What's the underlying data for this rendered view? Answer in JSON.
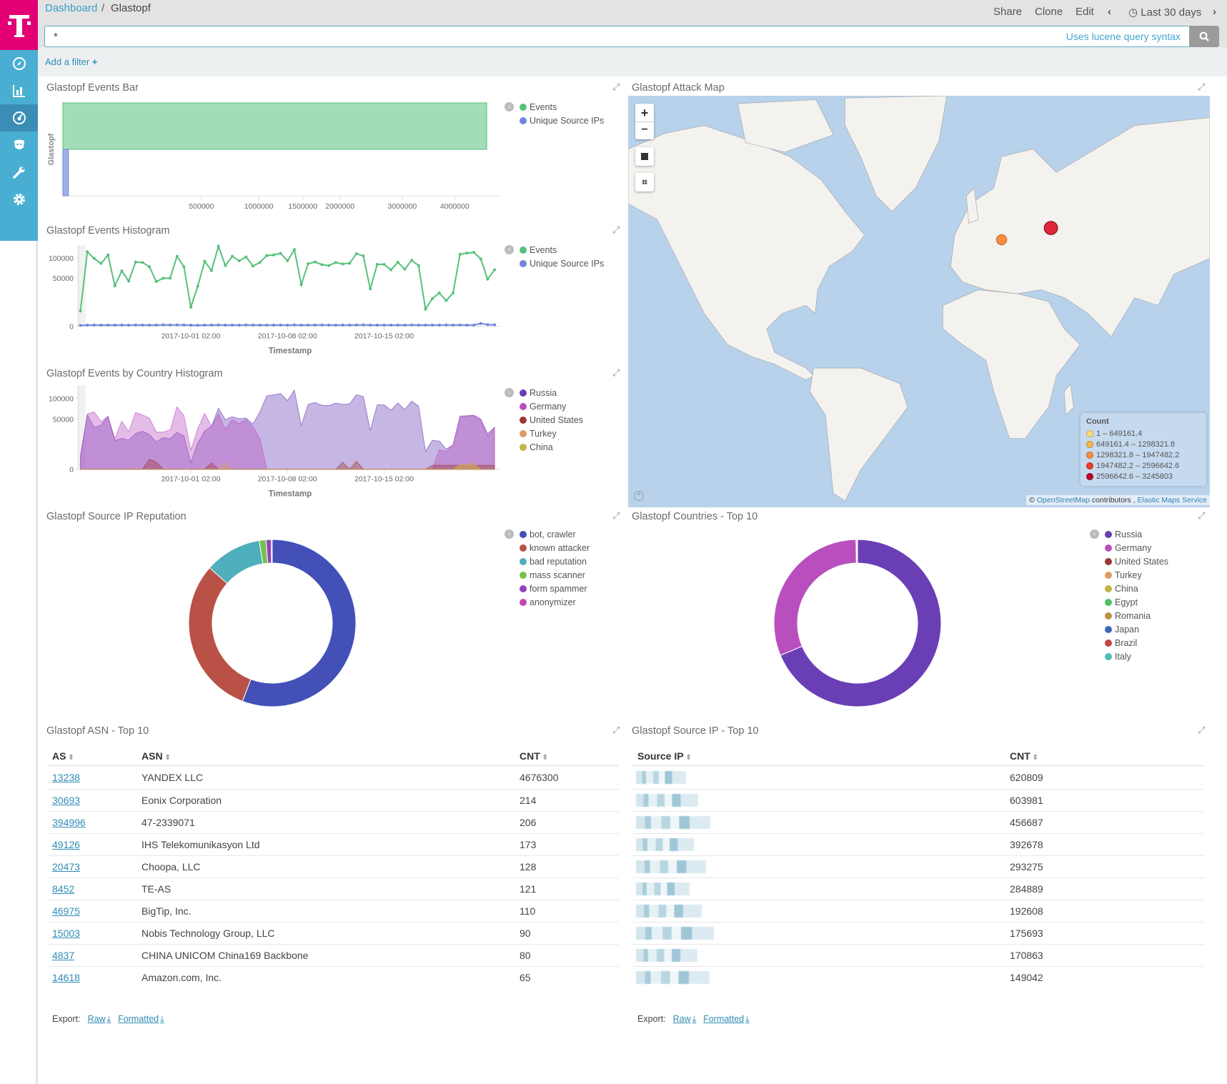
{
  "breadcrumb": {
    "root": "Dashboard",
    "current": "Glastopf"
  },
  "toolbar": {
    "share": "Share",
    "clone": "Clone",
    "edit": "Edit",
    "time_range": "Last 30 days"
  },
  "search": {
    "value": "*",
    "hint": "Uses lucene query syntax"
  },
  "filter": {
    "add_label": "Add a filter"
  },
  "sidebar": {
    "items": [
      {
        "icon": "compass-icon"
      },
      {
        "icon": "bar-chart-icon"
      },
      {
        "icon": "dashboard-icon",
        "active": true
      },
      {
        "icon": "timelion-icon"
      },
      {
        "icon": "wrench-icon"
      },
      {
        "icon": "gear-icon"
      }
    ]
  },
  "colors": {
    "brand": "#e20074",
    "sidebar": "#4aaed3",
    "accent": "#2f8cb6"
  },
  "panels": {
    "events_bar": {
      "title": "Glastopf Events Bar"
    },
    "attack_map": {
      "title": "Glastopf Attack Map",
      "legend_title": "Count",
      "legend": [
        {
          "label": "1 – 649161.4",
          "color": "#fed976"
        },
        {
          "label": "649161.4 – 1298321.8",
          "color": "#feb24c"
        },
        {
          "label": "1298321.8 – 1947482.2",
          "color": "#fd8d3c"
        },
        {
          "label": "1947482.2 – 2596642.6",
          "color": "#f03b20"
        },
        {
          "label": "2596642.6 – 3245803",
          "color": "#bd0026"
        }
      ],
      "markers": [
        {
          "location": "Germany",
          "color": "#fd8d3c"
        },
        {
          "location": "Russia",
          "color": "#e0283a"
        }
      ],
      "attribution": {
        "prefix": "©",
        "osm": "OpenStreetMap",
        "contributors": "contributors ,",
        "ems": "Elastic Maps Service"
      },
      "controls": {
        "zoom_in": "+",
        "zoom_out": "−"
      }
    },
    "events_histogram": {
      "title": "Glastopf Events Histogram"
    },
    "country_histogram": {
      "title": "Glastopf Events by Country Histogram"
    },
    "reputation": {
      "title": "Glastopf Source IP Reputation"
    },
    "countries": {
      "title": "Glastopf Countries - Top 10"
    },
    "asn": {
      "title": "Glastopf ASN - Top 10",
      "columns": [
        "AS",
        "ASN",
        "CNT"
      ],
      "rows": [
        [
          "13238",
          "YANDEX LLC",
          "4676300"
        ],
        [
          "30693",
          "Eonix Corporation",
          "214"
        ],
        [
          "394996",
          "47-2339071",
          "206"
        ],
        [
          "49126",
          "IHS Telekomunikasyon Ltd",
          "173"
        ],
        [
          "20473",
          "Choopa, LLC",
          "128"
        ],
        [
          "8452",
          "TE-AS",
          "121"
        ],
        [
          "46975",
          "BigTip, Inc.",
          "110"
        ],
        [
          "15003",
          "Nobis Technology Group, LLC",
          "90"
        ],
        [
          "4837",
          "CHINA UNICOM China169 Backbone",
          "80"
        ],
        [
          "14618",
          "Amazon.com, Inc.",
          "65"
        ]
      ],
      "export": {
        "label": "Export:",
        "raw": "Raw",
        "formatted": "Formatted"
      }
    },
    "source_ip": {
      "title": "Glastopf Source IP - Top 10",
      "columns": [
        "Source IP",
        "CNT"
      ],
      "rows": [
        [
          "620809"
        ],
        [
          "603981"
        ],
        [
          "456687"
        ],
        [
          "392678"
        ],
        [
          "293275"
        ],
        [
          "284889"
        ],
        [
          "192608"
        ],
        [
          "175693"
        ],
        [
          "170863"
        ],
        [
          "149042"
        ]
      ],
      "export": {
        "label": "Export:",
        "raw": "Raw",
        "formatted": "Formatted"
      }
    }
  },
  "chart_data": [
    {
      "type": "bar",
      "orientation": "horizontal",
      "categories": [
        "Glastopf"
      ],
      "ylabel": "Glastopf",
      "xscale": "sqrt",
      "xlim": [
        0,
        5000000
      ],
      "xticks": [
        "500000",
        "1000000",
        "1500000",
        "2000000",
        "3000000",
        "4000000"
      ],
      "series": [
        {
          "name": "Events",
          "color": "#57c17b",
          "values": [
            4680000
          ]
        },
        {
          "name": "Unique Source IPs",
          "color": "#6f87d8",
          "values": [
            800
          ]
        }
      ]
    },
    {
      "type": "line",
      "xlabel": "Timestamp",
      "yscale": "sqrt",
      "ylim": [
        0,
        140000
      ],
      "yticks": [
        "0",
        "50000",
        "100000"
      ],
      "xticks": [
        "2017-10-01 02:00",
        "2017-10-08 02:00",
        "2017-10-15 02:00"
      ],
      "x": [
        "2017-09-23 02:00",
        "2017-09-23 14:00",
        "2017-09-24 02:00",
        "2017-09-24 14:00",
        "2017-09-25 02:00",
        "2017-09-25 14:00",
        "2017-09-26 02:00",
        "2017-09-26 14:00",
        "2017-09-27 02:00",
        "2017-09-27 14:00",
        "2017-09-28 02:00",
        "2017-09-28 14:00",
        "2017-09-29 02:00",
        "2017-09-29 14:00",
        "2017-09-30 02:00",
        "2017-09-30 14:00",
        "2017-10-01 02:00",
        "2017-10-01 14:00",
        "2017-10-02 02:00",
        "2017-10-02 14:00",
        "2017-10-03 02:00",
        "2017-10-03 14:00",
        "2017-10-04 02:00",
        "2017-10-04 14:00",
        "2017-10-05 02:00",
        "2017-10-05 14:00",
        "2017-10-06 02:00",
        "2017-10-06 14:00",
        "2017-10-07 02:00",
        "2017-10-07 14:00",
        "2017-10-08 02:00",
        "2017-10-08 14:00",
        "2017-10-09 02:00",
        "2017-10-09 14:00",
        "2017-10-10 02:00",
        "2017-10-10 14:00",
        "2017-10-11 02:00",
        "2017-10-11 14:00",
        "2017-10-12 02:00",
        "2017-10-12 14:00",
        "2017-10-13 02:00",
        "2017-10-13 14:00",
        "2017-10-14 02:00",
        "2017-10-14 14:00",
        "2017-10-15 02:00",
        "2017-10-15 14:00",
        "2017-10-16 02:00",
        "2017-10-16 14:00",
        "2017-10-17 02:00",
        "2017-10-17 14:00",
        "2017-10-18 02:00",
        "2017-10-18 14:00",
        "2017-10-19 02:00",
        "2017-10-19 14:00",
        "2017-10-20 02:00",
        "2017-10-20 14:00",
        "2017-10-21 02:00",
        "2017-10-21 14:00",
        "2017-10-22 02:00",
        "2017-10-22 14:00",
        "2017-10-23 02:00"
      ],
      "series": [
        {
          "name": "Events",
          "color": "#57c17b",
          "values": [
            5000,
            119000,
            98600,
            84600,
            109000,
            35000,
            66000,
            43800,
            88500,
            87200,
            75900,
            42900,
            49500,
            49500,
            105000,
            75900,
            7800,
            34300,
            90500,
            66500,
            137000,
            79000,
            105000,
            91700,
            103000,
            77700,
            87200,
            107000,
            109000,
            114000,
            91700,
            126000,
            37200,
            84000,
            88500,
            81400,
            79000,
            87200,
            83300,
            85300,
            113000,
            106000,
            29900,
            82000,
            82000,
            68200,
            87800,
            69900,
            93200,
            79000,
            6300,
            16600,
            23800,
            14200,
            23800,
            111000,
            115000,
            117000,
            97200,
            47600,
            68200
          ]
        },
        {
          "name": "Unique Source IPs",
          "color": "#6f87d8",
          "values": [
            20,
            30,
            35,
            30,
            35,
            30,
            35,
            30,
            40,
            35,
            30,
            35,
            50,
            40,
            45,
            40,
            30,
            25,
            30,
            35,
            40,
            30,
            35,
            30,
            40,
            35,
            30,
            35,
            35,
            35,
            30,
            45,
            30,
            35,
            35,
            40,
            35,
            30,
            35,
            35,
            40,
            45,
            35,
            30,
            35,
            30,
            35,
            30,
            40,
            35,
            30,
            35,
            35,
            40,
            35,
            40,
            30,
            35,
            175,
            60,
            50
          ]
        }
      ]
    },
    {
      "type": "area",
      "xlabel": "Timestamp",
      "yscale": "sqrt",
      "ylim": [
        0,
        140000
      ],
      "yticks": [
        "0",
        "50000",
        "100000"
      ],
      "xticks": [
        "2017-10-01 02:00",
        "2017-10-08 02:00",
        "2017-10-15 02:00"
      ],
      "series": [
        {
          "name": "Russia",
          "color": "#6a3fb5",
          "values": [
            3400,
            58500,
            34500,
            38500,
            55500,
            16200,
            19000,
            16800,
            25300,
            28800,
            23700,
            14900,
            19600,
            18500,
            27000,
            22000,
            900,
            13600,
            28800,
            36500,
            74000,
            48700,
            54500,
            50600,
            52000,
            40600,
            64900,
            106800,
            109600,
            113800,
            93400,
            124000,
            38000,
            83300,
            88300,
            80900,
            80300,
            87000,
            83300,
            84500,
            110000,
            104700,
            29500,
            82100,
            82100,
            69300,
            87000,
            70400,
            92100,
            79100,
            6300,
            16800,
            15700,
            8100,
            11700,
            56000,
            57000,
            58000,
            50000,
            25000,
            35000
          ]
        },
        {
          "name": "Germany",
          "color": "#b94fbf",
          "values": [
            3400,
            60600,
            64900,
            45000,
            55500,
            18500,
            46000,
            28000,
            63800,
            58500,
            51600,
            27400,
            27400,
            30700,
            77300,
            57000,
            7200,
            32500,
            62000,
            36500,
            60600,
            31400,
            48700,
            41500,
            48700,
            35700,
            19000,
            0,
            0,
            0,
            0,
            0,
            0,
            0,
            0,
            0,
            0,
            0,
            0,
            0,
            0,
            0,
            0,
            0,
            0,
            0,
            0,
            0,
            0,
            0,
            0,
            0,
            7600,
            6300,
            11700,
            53500,
            56000,
            57000,
            48700,
            22000,
            33300
          ]
        },
        {
          "name": "United States",
          "color": "#9c3636",
          "values": [
            0,
            0,
            0,
            0,
            0,
            0,
            0,
            0,
            0,
            0,
            2000,
            1000,
            0,
            0,
            0,
            0,
            0,
            0,
            0,
            800,
            0,
            0,
            0,
            0,
            0,
            0,
            0,
            0,
            0,
            0,
            0,
            0,
            0,
            0,
            0,
            0,
            0,
            0,
            1000,
            0,
            1200,
            0,
            0,
            0,
            0,
            0,
            0,
            0,
            0,
            0,
            0,
            300,
            300,
            300,
            300,
            300,
            300,
            300,
            300,
            300,
            300
          ]
        },
        {
          "name": "Turkey",
          "color": "#dc9c61",
          "values": [
            0,
            0,
            0,
            0,
            0,
            0,
            0,
            0,
            0,
            0,
            0,
            0,
            0,
            0,
            0,
            0,
            0,
            0,
            0,
            0,
            0,
            800,
            0,
            0,
            0,
            0,
            0,
            0,
            0,
            0,
            0,
            0,
            0,
            0,
            0,
            0,
            0,
            0,
            0,
            0,
            0,
            0,
            0,
            0,
            0,
            0,
            0,
            0,
            0,
            0,
            0,
            0,
            0,
            0,
            0,
            500,
            500,
            800,
            0,
            0,
            0
          ]
        },
        {
          "name": "China",
          "color": "#c4b44a",
          "values": [
            0,
            0,
            0,
            0,
            0,
            0,
            0,
            0,
            0,
            0,
            0,
            0,
            0,
            0,
            0,
            0,
            0,
            0,
            0,
            0,
            0,
            0,
            0,
            0,
            0,
            0,
            0,
            0,
            0,
            0,
            0,
            0,
            0,
            0,
            0,
            0,
            0,
            0,
            0,
            0,
            0,
            0,
            0,
            0,
            0,
            0,
            0,
            0,
            0,
            0,
            0,
            0,
            0,
            0,
            0,
            300,
            300,
            300,
            0,
            0,
            0
          ]
        }
      ]
    },
    {
      "type": "pie",
      "donut": true,
      "categories": [
        "bot, crawler",
        "known attacker",
        "bad reputation",
        "mass scanner",
        "form spammer",
        "anonymizer"
      ],
      "values": [
        55.8,
        30.7,
        11.0,
        1.3,
        1.0,
        0.2
      ],
      "colors": [
        "#4350b8",
        "#ba5146",
        "#4fafbc",
        "#78bf4f",
        "#8e44bd",
        "#c047af"
      ]
    },
    {
      "type": "pie",
      "donut": true,
      "categories": [
        "Russia",
        "Germany",
        "United States",
        "Turkey",
        "China",
        "Egypt",
        "Romania",
        "Japan",
        "Brazil",
        "Italy"
      ],
      "values": [
        68.7,
        31.0,
        0.05,
        0.05,
        0.04,
        0.04,
        0.03,
        0.03,
        0.03,
        0.03
      ],
      "colors": [
        "#6a3fb5",
        "#b94fbf",
        "#9c3636",
        "#dc9c61",
        "#c4b44a",
        "#4dc163",
        "#bb9142",
        "#4265c0",
        "#c04448",
        "#4dbfb5"
      ]
    }
  ]
}
